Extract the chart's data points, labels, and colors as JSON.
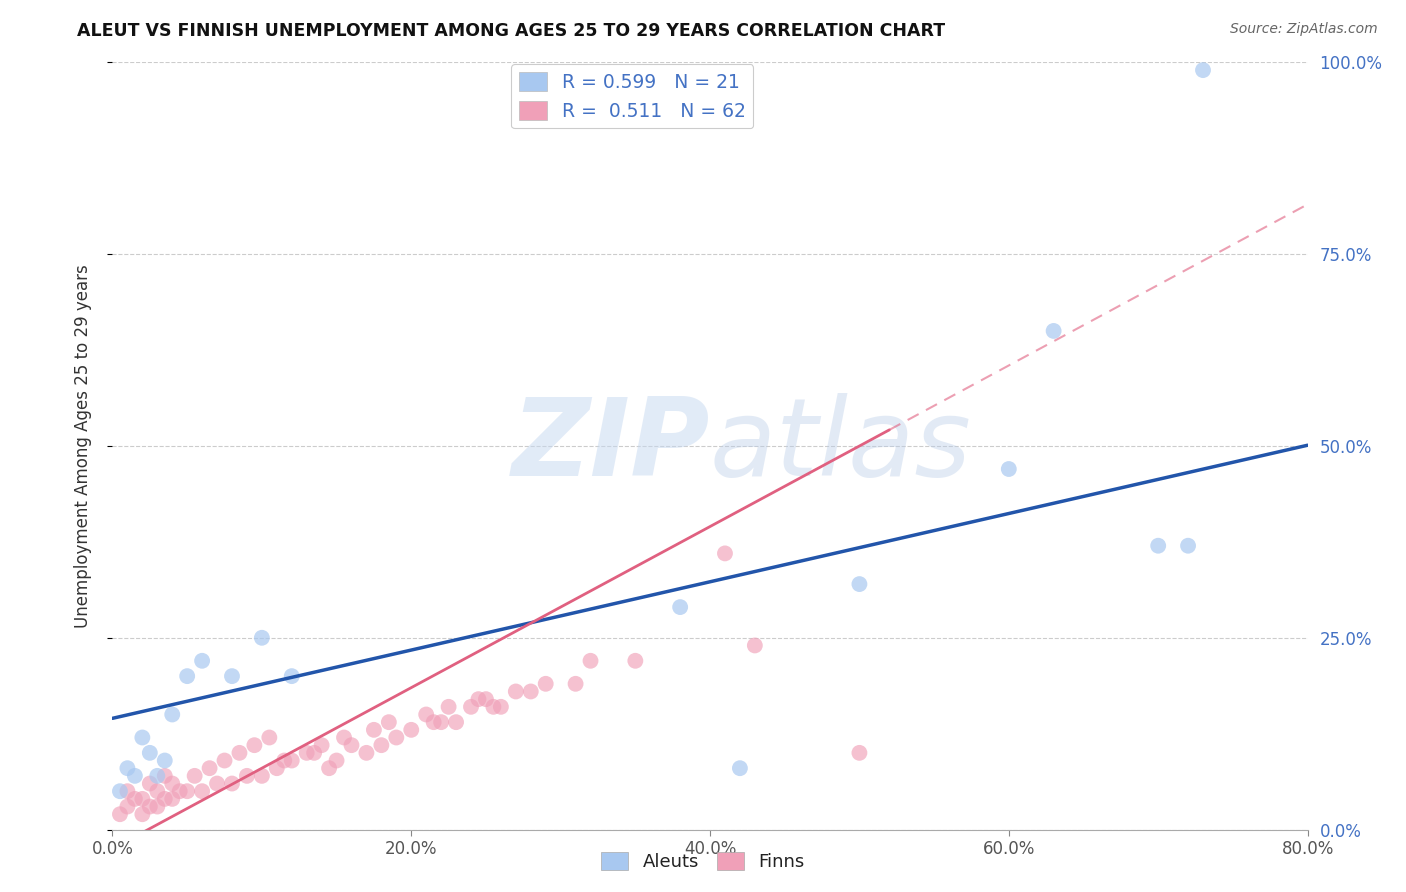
{
  "title": "ALEUT VS FINNISH UNEMPLOYMENT AMONG AGES 25 TO 29 YEARS CORRELATION CHART",
  "source": "Source: ZipAtlas.com",
  "ylabel": "Unemployment Among Ages 25 to 29 years",
  "xlim": [
    0.0,
    0.8
  ],
  "ylim": [
    0.0,
    1.0
  ],
  "xticks": [
    0.0,
    0.2,
    0.4,
    0.6,
    0.8
  ],
  "yticks": [
    0.0,
    0.25,
    0.5,
    0.75,
    1.0
  ],
  "xtick_labels": [
    "0.0%",
    "20.0%",
    "40.0%",
    "60.0%",
    "80.0%"
  ],
  "ytick_labels": [
    "0.0%",
    "25.0%",
    "50.0%",
    "75.0%",
    "100.0%"
  ],
  "aleut_color": "#a8c8f0",
  "finn_color": "#f0a0b8",
  "aleut_line_color": "#2255aa",
  "finn_line_color": "#e06080",
  "aleut_R": 0.599,
  "aleut_N": 21,
  "finn_R": 0.511,
  "finn_N": 62,
  "watermark": "ZIPatlas",
  "aleut_x": [
    0.005,
    0.01,
    0.015,
    0.02,
    0.025,
    0.03,
    0.035,
    0.04,
    0.05,
    0.06,
    0.08,
    0.1,
    0.12,
    0.38,
    0.42,
    0.5,
    0.6,
    0.63,
    0.7,
    0.72,
    0.73
  ],
  "aleut_y": [
    0.05,
    0.08,
    0.07,
    0.12,
    0.1,
    0.07,
    0.09,
    0.15,
    0.2,
    0.22,
    0.2,
    0.25,
    0.2,
    0.29,
    0.08,
    0.32,
    0.47,
    0.65,
    0.37,
    0.37,
    0.99
  ],
  "finn_x": [
    0.005,
    0.01,
    0.01,
    0.015,
    0.02,
    0.02,
    0.025,
    0.025,
    0.03,
    0.03,
    0.035,
    0.035,
    0.04,
    0.04,
    0.045,
    0.05,
    0.055,
    0.06,
    0.065,
    0.07,
    0.075,
    0.08,
    0.085,
    0.09,
    0.095,
    0.1,
    0.105,
    0.11,
    0.115,
    0.12,
    0.13,
    0.135,
    0.14,
    0.145,
    0.15,
    0.155,
    0.16,
    0.17,
    0.175,
    0.18,
    0.185,
    0.19,
    0.2,
    0.21,
    0.215,
    0.22,
    0.225,
    0.23,
    0.24,
    0.245,
    0.25,
    0.255,
    0.26,
    0.27,
    0.28,
    0.29,
    0.31,
    0.32,
    0.35,
    0.41,
    0.43,
    0.5
  ],
  "finn_y": [
    0.02,
    0.03,
    0.05,
    0.04,
    0.02,
    0.04,
    0.03,
    0.06,
    0.03,
    0.05,
    0.04,
    0.07,
    0.04,
    0.06,
    0.05,
    0.05,
    0.07,
    0.05,
    0.08,
    0.06,
    0.09,
    0.06,
    0.1,
    0.07,
    0.11,
    0.07,
    0.12,
    0.08,
    0.09,
    0.09,
    0.1,
    0.1,
    0.11,
    0.08,
    0.09,
    0.12,
    0.11,
    0.1,
    0.13,
    0.11,
    0.14,
    0.12,
    0.13,
    0.15,
    0.14,
    0.14,
    0.16,
    0.14,
    0.16,
    0.17,
    0.17,
    0.16,
    0.16,
    0.18,
    0.18,
    0.19,
    0.19,
    0.22,
    0.22,
    0.36,
    0.24,
    0.1
  ],
  "aleut_line_intercept": 0.145,
  "aleut_line_slope": 0.445,
  "finn_line_intercept": -0.025,
  "finn_line_slope": 1.05,
  "finn_line_solid_end": 0.52,
  "finn_line_dashed_start": 0.52
}
